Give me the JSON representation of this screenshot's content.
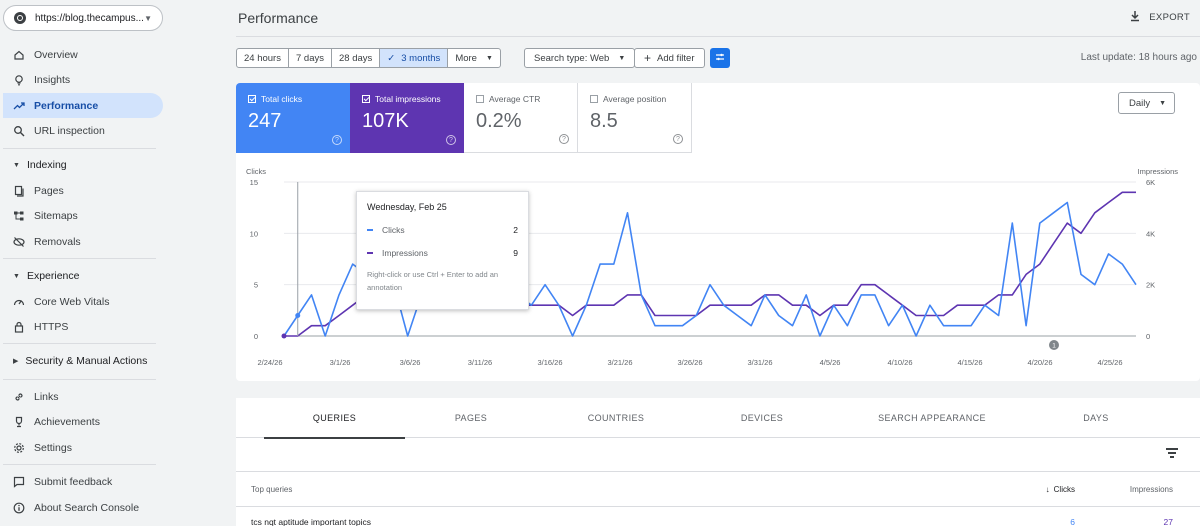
{
  "property": {
    "label": "https://blog.thecampus..."
  },
  "sidebar": {
    "items_top": [
      {
        "label": "Overview",
        "icon": "home-icon"
      },
      {
        "label": "Insights",
        "icon": "lightbulb-icon"
      },
      {
        "label": "Performance",
        "icon": "trending-up-icon",
        "active": true
      },
      {
        "label": "URL inspection",
        "icon": "search-icon"
      }
    ],
    "indexing": {
      "title": "Indexing",
      "items": [
        {
          "label": "Pages",
          "icon": "pages-icon"
        },
        {
          "label": "Sitemaps",
          "icon": "sitemap-icon"
        },
        {
          "label": "Removals",
          "icon": "removals-icon"
        }
      ]
    },
    "experience": {
      "title": "Experience",
      "items": [
        {
          "label": "Core Web Vitals",
          "icon": "speed-icon"
        },
        {
          "label": "HTTPS",
          "icon": "lock-icon"
        }
      ]
    },
    "security": {
      "title": "Security & Manual Actions"
    },
    "links_group": [
      {
        "label": "Links",
        "icon": "link-icon"
      },
      {
        "label": "Achievements",
        "icon": "trophy-icon"
      },
      {
        "label": "Settings",
        "icon": "gear-icon"
      }
    ],
    "bottom": [
      {
        "label": "Submit feedback",
        "icon": "feedback-icon"
      },
      {
        "label": "About Search Console",
        "icon": "info-icon"
      }
    ]
  },
  "header": {
    "title": "Performance",
    "export_label": "EXPORT"
  },
  "toolbar": {
    "date_ranges": [
      "24 hours",
      "7 days",
      "28 days",
      "3 months",
      "More"
    ],
    "selected_range": "3 months",
    "search_type": "Search type: Web",
    "add_filter": "Add filter",
    "last_update": "Last update: 18 hours ago"
  },
  "metrics": {
    "clicks": {
      "label": "Total clicks",
      "value": "247",
      "color": "#4285f4"
    },
    "impressions": {
      "label": "Total impressions",
      "value": "107K",
      "color": "#5e35b1"
    },
    "ctr": {
      "label": "Average CTR",
      "value": "0.2%"
    },
    "position": {
      "label": "Average position",
      "value": "8.5"
    }
  },
  "granularity": "Daily",
  "chart_data": {
    "type": "line",
    "left_axis": {
      "label": "Clicks",
      "ticks": [
        "15",
        "10",
        "5",
        "0"
      ],
      "ylim": [
        0,
        15
      ]
    },
    "right_axis": {
      "label": "Impressions",
      "ticks": [
        "6K",
        "4K",
        "2K",
        "0"
      ],
      "ylim": [
        0,
        6000
      ]
    },
    "x_tick_labels": [
      "2/24/26",
      "3/1/26",
      "3/6/26",
      "3/11/26",
      "3/16/26",
      "3/21/26",
      "3/26/26",
      "3/31/26",
      "4/5/26",
      "4/10/26",
      "4/15/26",
      "4/20/26",
      "4/25/26"
    ],
    "annotation_marker": "1",
    "series": [
      {
        "name": "Clicks",
        "axis": "left",
        "color": "#4285f4",
        "values": [
          0,
          2,
          4,
          0,
          4,
          7,
          6,
          3,
          5,
          0,
          4,
          5,
          8,
          5,
          7,
          3,
          3,
          4,
          3,
          5,
          3,
          0,
          3,
          7,
          7,
          12,
          4,
          1,
          1,
          1,
          2,
          5,
          3,
          2,
          1,
          4,
          2,
          1,
          4,
          0,
          3,
          1,
          4,
          4,
          1,
          3,
          0,
          3,
          1,
          1,
          1,
          3,
          2,
          11,
          1,
          11,
          12,
          13,
          6,
          5,
          8,
          7,
          5
        ]
      },
      {
        "name": "Impressions",
        "axis": "left",
        "color": "#5e35b1",
        "values": [
          0,
          0,
          1,
          1,
          2,
          3,
          4,
          4,
          4,
          3,
          3,
          4,
          5,
          5,
          4,
          3,
          3,
          3,
          3,
          3,
          3,
          2,
          3,
          3,
          3,
          4,
          4,
          2,
          2,
          2,
          2,
          3,
          3,
          3,
          3,
          4,
          4,
          3,
          3,
          2,
          3,
          3,
          5,
          5,
          4,
          3,
          2,
          2,
          2,
          3,
          3,
          3,
          4,
          4,
          6,
          7,
          9,
          11,
          10,
          12,
          13,
          14,
          14
        ]
      }
    ]
  },
  "tooltip": {
    "date": "Wednesday, Feb 25",
    "rows": [
      {
        "label": "Clicks",
        "value": "2",
        "color": "#4285f4"
      },
      {
        "label": "Impressions",
        "value": "9",
        "color": "#5e35b1"
      }
    ],
    "hint": "Right-click or use Ctrl + Enter to add an annotation"
  },
  "tabs": [
    "QUERIES",
    "PAGES",
    "COUNTRIES",
    "DEVICES",
    "SEARCH APPEARANCE",
    "DAYS"
  ],
  "table": {
    "col_query": "Top queries",
    "col_clicks": "Clicks",
    "col_impressions": "Impressions",
    "rows": [
      {
        "query": "tcs nqt aptitude important topics",
        "clicks": "6",
        "impressions": "27"
      }
    ]
  }
}
